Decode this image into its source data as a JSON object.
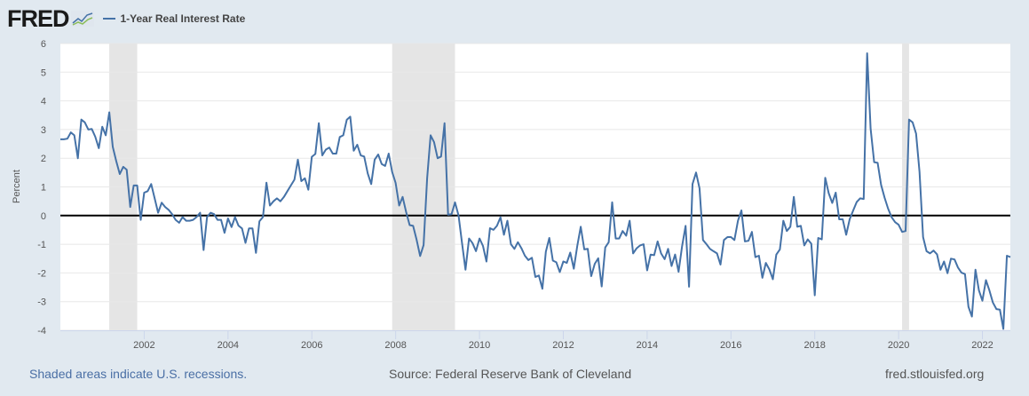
{
  "header": {
    "logo_text": "FRED",
    "legend_label": "1-Year Real Interest Rate"
  },
  "footer": {
    "recessions_note": "Shaded areas indicate U.S. recessions.",
    "source": "Source: Federal Reserve Bank of Cleveland",
    "site": "fred.stlouisfed.org"
  },
  "colors": {
    "series": "#4572a7",
    "recession": "#e5e5e5",
    "background": "#e1e9f0",
    "zero_line": "#000000"
  },
  "chart_data": {
    "type": "line",
    "title": "",
    "ylabel": "Percent",
    "xlabel": "",
    "ylim": [
      -4,
      6
    ],
    "xlim": [
      "2000-01",
      "2022-09"
    ],
    "yticks": [
      "6",
      "5",
      "4",
      "3",
      "2",
      "1",
      "0",
      "-1",
      "-2",
      "-3",
      "-4"
    ],
    "xticks": [
      "2002",
      "2004",
      "2006",
      "2008",
      "2010",
      "2012",
      "2014",
      "2016",
      "2018",
      "2020",
      "2022"
    ],
    "grid": true,
    "legend": "top-left",
    "recessions": [
      [
        "2001-03",
        "2001-11"
      ],
      [
        "2007-12",
        "2009-06"
      ],
      [
        "2020-02",
        "2020-04"
      ]
    ],
    "series": [
      {
        "name": "1-Year Real Interest Rate",
        "x": [
          "2000-01",
          "2000-02",
          "2000-03",
          "2000-04",
          "2000-05",
          "2000-06",
          "2000-07",
          "2000-08",
          "2000-09",
          "2000-10",
          "2000-11",
          "2000-12",
          "2001-01",
          "2001-02",
          "2001-03",
          "2001-04",
          "2001-05",
          "2001-06",
          "2001-07",
          "2001-08",
          "2001-09",
          "2001-10",
          "2001-11",
          "2001-12",
          "2002-01",
          "2002-02",
          "2002-03",
          "2002-04",
          "2002-05",
          "2002-06",
          "2002-07",
          "2002-08",
          "2002-09",
          "2002-10",
          "2002-11",
          "2002-12",
          "2003-01",
          "2003-02",
          "2003-03",
          "2003-04",
          "2003-05",
          "2003-06",
          "2003-07",
          "2003-08",
          "2003-09",
          "2003-10",
          "2003-11",
          "2003-12",
          "2004-01",
          "2004-02",
          "2004-03",
          "2004-04",
          "2004-05",
          "2004-06",
          "2004-07",
          "2004-08",
          "2004-09",
          "2004-10",
          "2004-11",
          "2004-12",
          "2005-01",
          "2005-02",
          "2005-03",
          "2005-04",
          "2005-05",
          "2005-06",
          "2005-07",
          "2005-08",
          "2005-09",
          "2005-10",
          "2005-11",
          "2005-12",
          "2006-01",
          "2006-02",
          "2006-03",
          "2006-04",
          "2006-05",
          "2006-06",
          "2006-07",
          "2006-08",
          "2006-09",
          "2006-10",
          "2006-11",
          "2006-12",
          "2007-01",
          "2007-02",
          "2007-03",
          "2007-04",
          "2007-05",
          "2007-06",
          "2007-07",
          "2007-08",
          "2007-09",
          "2007-10",
          "2007-11",
          "2007-12",
          "2008-01",
          "2008-02",
          "2008-03",
          "2008-04",
          "2008-05",
          "2008-06",
          "2008-07",
          "2008-08",
          "2008-09",
          "2008-10",
          "2008-11",
          "2008-12",
          "2009-01",
          "2009-02",
          "2009-03",
          "2009-04",
          "2009-05",
          "2009-06",
          "2009-07",
          "2009-08",
          "2009-09",
          "2009-10",
          "2009-11",
          "2009-12",
          "2010-01",
          "2010-02",
          "2010-03",
          "2010-04",
          "2010-05",
          "2010-06",
          "2010-07",
          "2010-08",
          "2010-09",
          "2010-10",
          "2010-11",
          "2010-12",
          "2011-01",
          "2011-02",
          "2011-03",
          "2011-04",
          "2011-05",
          "2011-06",
          "2011-07",
          "2011-08",
          "2011-09",
          "2011-10",
          "2011-11",
          "2011-12",
          "2012-01",
          "2012-02",
          "2012-03",
          "2012-04",
          "2012-05",
          "2012-06",
          "2012-07",
          "2012-08",
          "2012-09",
          "2012-10",
          "2012-11",
          "2012-12",
          "2013-01",
          "2013-02",
          "2013-03",
          "2013-04",
          "2013-05",
          "2013-06",
          "2013-07",
          "2013-08",
          "2013-09",
          "2013-10",
          "2013-11",
          "2013-12",
          "2014-01",
          "2014-02",
          "2014-03",
          "2014-04",
          "2014-05",
          "2014-06",
          "2014-07",
          "2014-08",
          "2014-09",
          "2014-10",
          "2014-11",
          "2014-12",
          "2015-01",
          "2015-02",
          "2015-03",
          "2015-04",
          "2015-05",
          "2015-06",
          "2015-07",
          "2015-08",
          "2015-09",
          "2015-10",
          "2015-11",
          "2015-12",
          "2016-01",
          "2016-02",
          "2016-03",
          "2016-04",
          "2016-05",
          "2016-06",
          "2016-07",
          "2016-08",
          "2016-09",
          "2016-10",
          "2016-11",
          "2016-12",
          "2017-01",
          "2017-02",
          "2017-03",
          "2017-04",
          "2017-05",
          "2017-06",
          "2017-07",
          "2017-08",
          "2017-09",
          "2017-10",
          "2017-11",
          "2017-12",
          "2018-01",
          "2018-02",
          "2018-03",
          "2018-04",
          "2018-05",
          "2018-06",
          "2018-07",
          "2018-08",
          "2018-09",
          "2018-10",
          "2018-11",
          "2018-12",
          "2019-01",
          "2019-02",
          "2019-03",
          "2019-04",
          "2019-05",
          "2019-06",
          "2019-07",
          "2019-08",
          "2019-09",
          "2019-10",
          "2019-11",
          "2019-12",
          "2020-01",
          "2020-02",
          "2020-03",
          "2020-04",
          "2020-05",
          "2020-06",
          "2020-07",
          "2020-08",
          "2020-09",
          "2020-10",
          "2020-11",
          "2020-12",
          "2021-01",
          "2021-02",
          "2021-03",
          "2021-04",
          "2021-05",
          "2021-06",
          "2021-07",
          "2021-08",
          "2021-09",
          "2021-10",
          "2021-11",
          "2021-12",
          "2022-01",
          "2022-02",
          "2022-03",
          "2022-04",
          "2022-05",
          "2022-06",
          "2022-07",
          "2022-08",
          "2022-09"
        ],
        "values": [
          2.66,
          2.66,
          2.68,
          2.9,
          2.8,
          2.0,
          3.35,
          3.25,
          3.0,
          3.02,
          2.75,
          2.35,
          3.1,
          2.8,
          3.6,
          2.4,
          1.9,
          1.45,
          1.7,
          1.6,
          0.3,
          1.05,
          1.05,
          -0.15,
          0.8,
          0.85,
          1.1,
          0.6,
          0.1,
          0.45,
          0.3,
          0.2,
          0.05,
          -0.15,
          -0.25,
          -0.05,
          -0.18,
          -0.18,
          -0.15,
          -0.05,
          0.1,
          -1.2,
          -0.05,
          0.1,
          0.05,
          -0.15,
          -0.15,
          -0.6,
          -0.1,
          -0.4,
          -0.05,
          -0.35,
          -0.45,
          -0.95,
          -0.45,
          -0.45,
          -1.3,
          -0.2,
          -0.05,
          1.15,
          0.35,
          0.5,
          0.6,
          0.5,
          0.65,
          0.85,
          1.05,
          1.25,
          1.95,
          1.2,
          1.3,
          0.9,
          2.05,
          2.15,
          3.22,
          2.1,
          2.3,
          2.37,
          2.16,
          2.16,
          2.74,
          2.8,
          3.34,
          3.45,
          2.26,
          2.47,
          2.1,
          2.06,
          1.47,
          1.1,
          1.95,
          2.13,
          1.8,
          1.73,
          2.16,
          1.52,
          1.14,
          0.35,
          0.65,
          0.13,
          -0.33,
          -0.36,
          -0.85,
          -1.41,
          -1.03,
          1.3,
          2.8,
          2.56,
          2.0,
          2.06,
          3.22,
          0.03,
          0.05,
          0.46,
          0.0,
          -0.96,
          -1.89,
          -0.8,
          -0.96,
          -1.24,
          -0.8,
          -1.06,
          -1.6,
          -0.44,
          -0.5,
          -0.36,
          -0.06,
          -0.67,
          -0.18,
          -1.0,
          -1.16,
          -0.93,
          -1.14,
          -1.4,
          -1.55,
          -1.47,
          -2.14,
          -2.09,
          -2.55,
          -1.26,
          -0.78,
          -1.57,
          -1.63,
          -1.97,
          -1.6,
          -1.65,
          -1.29,
          -1.85,
          -1.06,
          -0.39,
          -1.18,
          -1.16,
          -2.11,
          -1.68,
          -1.49,
          -2.47,
          -1.11,
          -0.93,
          0.46,
          -0.8,
          -0.8,
          -0.54,
          -0.7,
          -0.18,
          -1.32,
          -1.14,
          -1.04,
          -1.0,
          -1.91,
          -1.36,
          -1.38,
          -0.9,
          -1.32,
          -1.52,
          -1.16,
          -1.76,
          -1.36,
          -1.96,
          -1.08,
          -0.36,
          -2.48,
          1.1,
          1.5,
          0.95,
          -0.85,
          -1.0,
          -1.16,
          -1.24,
          -1.32,
          -1.71,
          -0.85,
          -0.75,
          -0.75,
          -0.85,
          -0.18,
          0.18,
          -0.9,
          -0.88,
          -0.57,
          -1.45,
          -1.4,
          -2.17,
          -1.65,
          -1.88,
          -2.22,
          -1.36,
          -1.18,
          -0.18,
          -0.54,
          -0.39,
          0.65,
          -0.39,
          -0.36,
          -1.04,
          -0.83,
          -0.98,
          -2.78,
          -0.78,
          -0.83,
          1.32,
          0.78,
          0.44,
          0.8,
          -0.13,
          -0.13,
          -0.67,
          -0.13,
          0.18,
          0.47,
          0.6,
          0.58,
          5.66,
          3.03,
          1.86,
          1.84,
          1.07,
          0.62,
          0.24,
          -0.06,
          -0.23,
          -0.32,
          -0.57,
          -0.54,
          3.35,
          3.25,
          2.86,
          1.52,
          -0.75,
          -1.24,
          -1.32,
          -1.22,
          -1.35,
          -1.89,
          -1.6,
          -2.01,
          -1.5,
          -1.53,
          -1.81,
          -1.99,
          -2.04,
          -3.18,
          -3.52,
          -1.89,
          -2.61,
          -2.97,
          -2.25,
          -2.61,
          -3.03,
          -3.26,
          -3.28,
          -3.95,
          -1.4,
          -1.45
        ]
      }
    ]
  }
}
